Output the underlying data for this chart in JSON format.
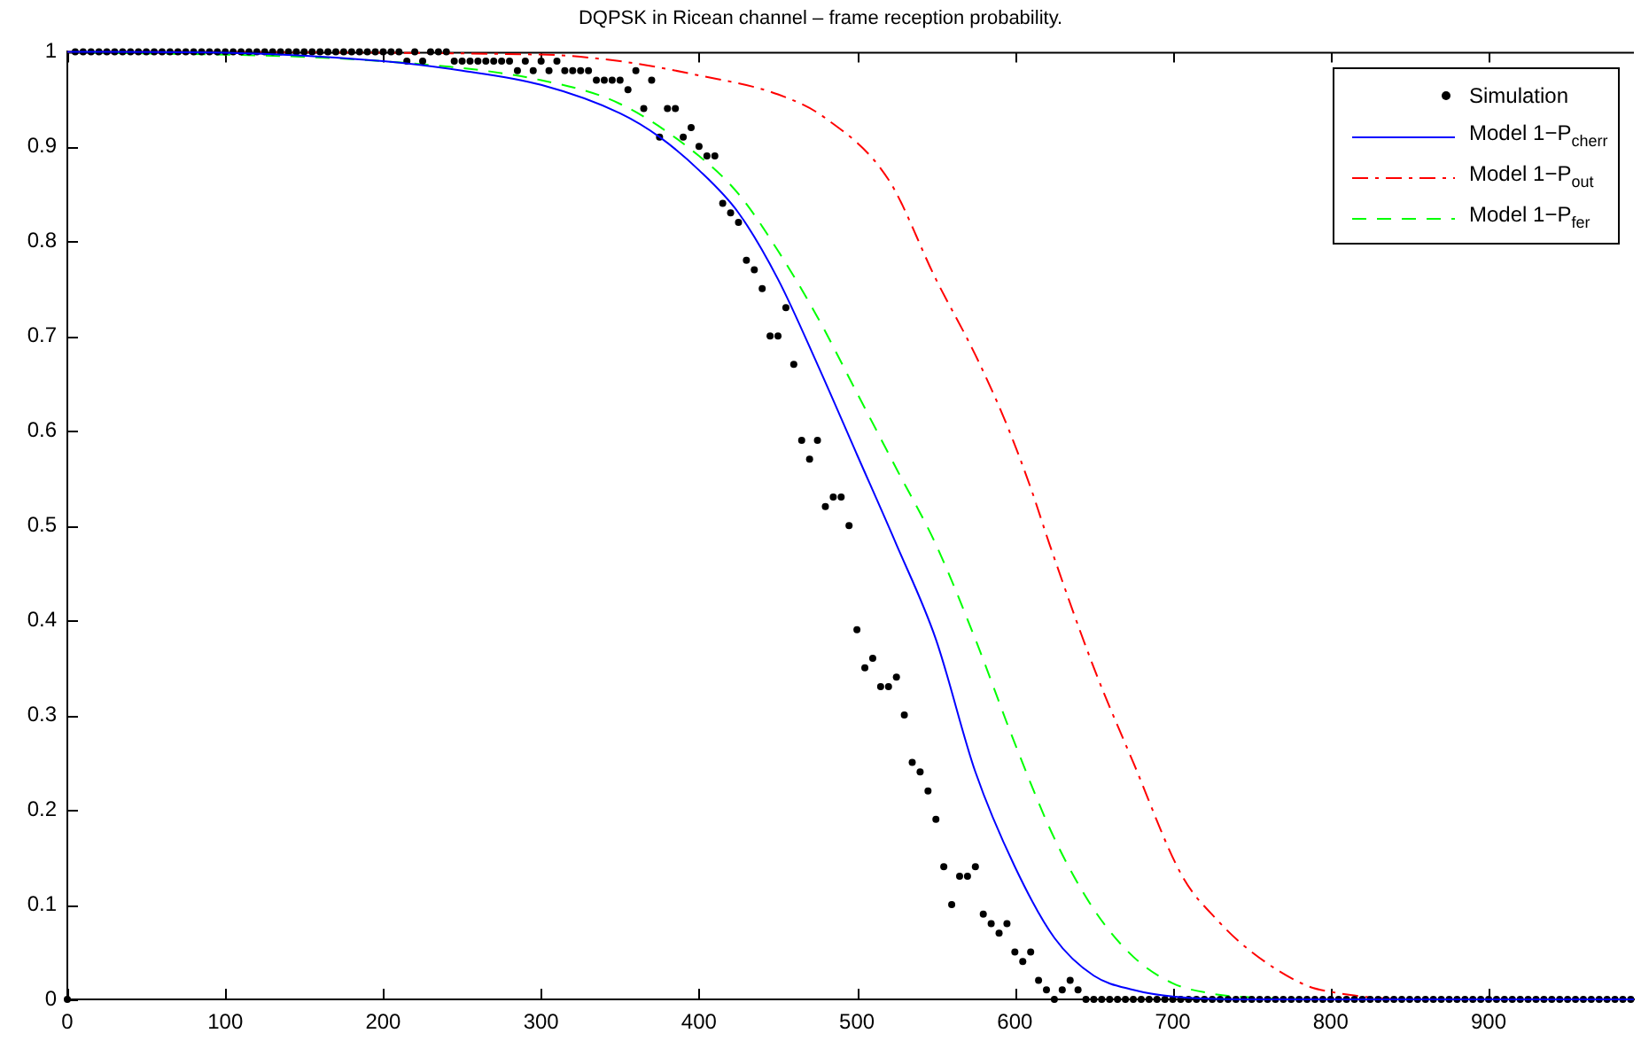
{
  "chart_data": {
    "type": "line",
    "title": "DQPSK in Ricean channel – frame reception probability.",
    "xlim": [
      0,
      992
    ],
    "xticks": [
      0,
      100,
      200,
      300,
      400,
      500,
      600,
      700,
      800,
      900
    ],
    "ylim": [
      0,
      1
    ],
    "yticks": [
      0,
      0.1,
      0.2,
      0.3,
      0.4,
      0.5,
      0.6,
      0.7,
      0.8,
      0.9,
      1
    ],
    "grid": false,
    "legend": "top right",
    "series": [
      {
        "name": "Simulation",
        "type": "scatter",
        "marker": "circle",
        "color": "#000000",
        "x": [
          0,
          5,
          10,
          15,
          20,
          25,
          30,
          35,
          40,
          45,
          50,
          55,
          60,
          65,
          70,
          75,
          80,
          85,
          90,
          95,
          100,
          105,
          110,
          115,
          120,
          125,
          130,
          135,
          140,
          145,
          150,
          155,
          160,
          165,
          170,
          175,
          180,
          185,
          190,
          195,
          200,
          205,
          210,
          215,
          220,
          225,
          230,
          235,
          240,
          245,
          250,
          255,
          260,
          265,
          270,
          275,
          280,
          285,
          290,
          295,
          300,
          305,
          310,
          315,
          320,
          325,
          330,
          335,
          340,
          345,
          350,
          355,
          360,
          365,
          370,
          375,
          380,
          385,
          390,
          395,
          400,
          405,
          410,
          415,
          420,
          425,
          430,
          435,
          440,
          445,
          450,
          455,
          460,
          465,
          470,
          475,
          480,
          485,
          490,
          495,
          500,
          505,
          510,
          515,
          520,
          525,
          530,
          535,
          540,
          545,
          550,
          555,
          560,
          565,
          570,
          575,
          580,
          585,
          590,
          595,
          600,
          605,
          610,
          615,
          620,
          625,
          630,
          635,
          640,
          645,
          650,
          655,
          660,
          665,
          670,
          675,
          680,
          685,
          690,
          695,
          700,
          705,
          710,
          715,
          720,
          725,
          730,
          735,
          740,
          745,
          750,
          755,
          760,
          765,
          770,
          775,
          780,
          785,
          790,
          795,
          800,
          805,
          810,
          815,
          820,
          825,
          830,
          835,
          840,
          845,
          850,
          855,
          860,
          865,
          870,
          875,
          880,
          885,
          890,
          895,
          900,
          905,
          910,
          915,
          920,
          925,
          930,
          935,
          940,
          945,
          950,
          955,
          960,
          965,
          970,
          975,
          980,
          985,
          990
        ],
        "values": [
          0,
          1,
          1,
          1,
          1,
          1,
          1,
          1,
          1,
          1,
          1,
          1,
          1,
          1,
          1,
          1,
          1,
          1,
          1,
          1,
          1,
          1,
          1,
          1,
          1,
          1,
          1,
          1,
          1,
          1,
          1,
          1,
          1,
          1,
          1,
          1,
          1,
          1,
          1,
          1,
          1,
          1,
          1,
          0.99,
          1,
          0.99,
          1,
          1,
          1,
          0.99,
          0.99,
          0.99,
          0.99,
          0.99,
          0.99,
          0.99,
          0.99,
          0.98,
          0.99,
          0.98,
          0.99,
          0.98,
          0.99,
          0.98,
          0.98,
          0.98,
          0.98,
          0.97,
          0.97,
          0.97,
          0.97,
          0.96,
          0.98,
          0.94,
          0.97,
          0.91,
          0.94,
          0.94,
          0.91,
          0.92,
          0.9,
          0.89,
          0.89,
          0.84,
          0.83,
          0.82,
          0.78,
          0.77,
          0.75,
          0.7,
          0.7,
          0.73,
          0.67,
          0.59,
          0.57,
          0.59,
          0.52,
          0.53,
          0.53,
          0.5,
          0.39,
          0.35,
          0.36,
          0.33,
          0.33,
          0.34,
          0.3,
          0.25,
          0.24,
          0.22,
          0.19,
          0.14,
          0.1,
          0.13,
          0.13,
          0.14,
          0.09,
          0.08,
          0.07,
          0.08,
          0.05,
          0.04,
          0.05,
          0.02,
          0.01,
          0,
          0.01,
          0.02,
          0.01,
          0,
          0,
          0,
          0,
          0,
          0,
          0,
          0,
          0,
          0,
          0,
          0,
          0,
          0,
          0,
          0,
          0,
          0,
          0,
          0,
          0,
          0,
          0,
          0,
          0,
          0,
          0,
          0,
          0,
          0,
          0,
          0,
          0,
          0,
          0,
          0,
          0,
          0,
          0,
          0,
          0,
          0,
          0,
          0,
          0,
          0,
          0,
          0,
          0,
          0,
          0,
          0,
          0,
          0,
          0,
          0,
          0,
          0,
          0,
          0,
          0,
          0,
          0,
          0,
          0,
          0,
          0,
          0,
          0,
          0
        ]
      },
      {
        "name": "Model 1−P$_{cherr}$",
        "type": "line",
        "marker": "none",
        "line_style": "solid",
        "color": "#0000ff",
        "x": [
          0,
          100,
          200,
          250,
          300,
          350,
          375,
          400,
          425,
          450,
          475,
          500,
          525,
          550,
          575,
          600,
          625,
          650,
          675,
          700,
          750,
          992
        ],
        "values": [
          1,
          0.999,
          0.99,
          0.98,
          0.965,
          0.935,
          0.91,
          0.875,
          0.83,
          0.76,
          0.67,
          0.575,
          0.48,
          0.38,
          0.24,
          0.14,
          0.065,
          0.025,
          0.01,
          0.003,
          0,
          0
        ]
      },
      {
        "name": "Model 1−P$_{out}$",
        "type": "line",
        "marker": "none",
        "line_style": "dashdot",
        "color": "#ff0000",
        "x": [
          0,
          300,
          350,
          400,
          450,
          480,
          520,
          550,
          575,
          594,
          610,
          622,
          650,
          675,
          706,
          728,
          750,
          784,
          800,
          850,
          992
        ],
        "values": [
          1,
          0.997,
          0.99,
          0.975,
          0.955,
          0.93,
          0.865,
          0.76,
          0.68,
          0.61,
          0.54,
          0.48,
          0.35,
          0.25,
          0.13,
          0.084,
          0.05,
          0.015,
          0.008,
          0,
          0
        ]
      },
      {
        "name": "Model 1−P$_{fer}$",
        "type": "line",
        "marker": "none",
        "line_style": "dashed",
        "color": "#00ff00",
        "x": [
          0,
          200,
          300,
          350,
          400,
          425,
          450,
          475,
          500,
          525,
          550,
          575,
          600,
          625,
          650,
          675,
          700,
          725,
          750,
          800,
          992
        ],
        "values": [
          1,
          0.99,
          0.97,
          0.945,
          0.89,
          0.85,
          0.79,
          0.72,
          0.64,
          0.56,
          0.48,
          0.38,
          0.27,
          0.17,
          0.095,
          0.045,
          0.017,
          0.006,
          0.002,
          0,
          0
        ]
      }
    ]
  }
}
